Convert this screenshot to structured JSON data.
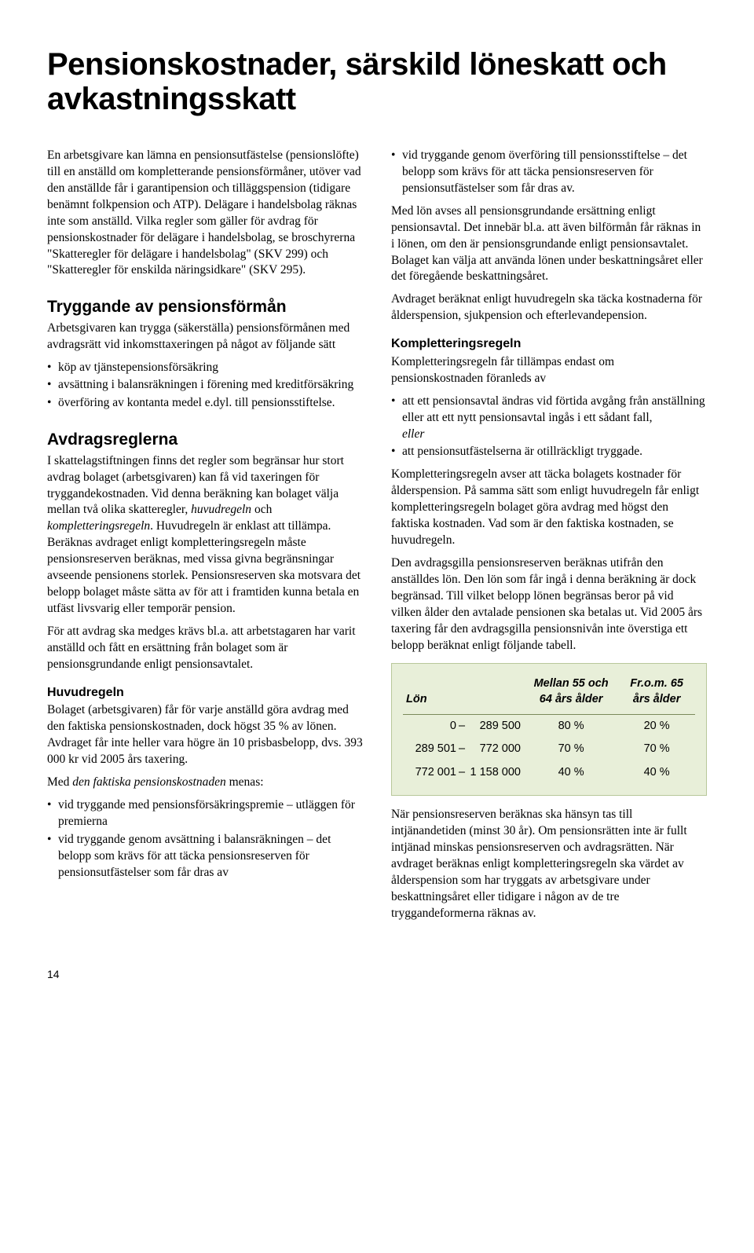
{
  "title": "Pensionskostnader, särskild löneskatt och avkastningsskatt",
  "left": {
    "intro": "En arbetsgivare kan lämna en pensionsutfästelse (pensionslöfte) till en anställd om kompletterande pensionsförmåner, utöver vad den anställde får i garantipension och tilläggspension (tidigare benämnt folkpension och ATP). Delägare i handelsbolag räknas inte som anställd. Vilka regler som gäller för avdrag för pensionskostnader för delägare i handelsbolag, se broschyrerna \"Skatteregler för delägare i handelsbolag\" (SKV 299) och \"Skatteregler för enskilda näringsidkare\" (SKV 295).",
    "h1": "Tryggande av pensionsförmån",
    "p1": "Arbetsgivaren kan trygga (säkerställa) pensionsförmånen med avdragsrätt vid inkomsttaxeringen på något av följande sätt",
    "b1": "köp av tjänstepensionsförsäkring",
    "b2": "avsättning i balansräkningen i förening med kreditförsäkring",
    "b3": "överföring av kontanta medel e.dyl. till pensionsstiftelse.",
    "h2": "Avdragsreglerna",
    "p2a": "I skattelagstiftningen finns det regler som begränsar hur stort avdrag bolaget (arbetsgivaren) kan få vid taxeringen för tryggandekostnaden. Vid denna beräkning kan bolaget välja mellan två olika skatteregler, ",
    "p2b": "huvudregeln",
    "p2c": " och ",
    "p2d": "kompletteringsregeln",
    "p2e": ". Huvudregeln är enklast att tillämpa. Beräknas avdraget enligt kompletteringsregeln måste pensionsreserven beräknas, med vissa givna begränsningar avseende pensionens storlek. Pensionsreserven ska motsvara det belopp bolaget måste sätta av för att i framtiden kunna betala en utfäst livsvarig eller temporär pension.",
    "p3": "För att avdrag ska medges krävs bl.a. att arbetstagaren har varit anställd och fått en ersättning från bolaget som är pensionsgrundande enligt pensionsavtalet.",
    "sh1": "Huvudregeln",
    "p4": "Bolaget (arbetsgivaren) får för varje anställd göra avdrag med den faktiska pensionskostnaden, dock högst 35 % av lönen. Avdraget får inte heller vara högre än 10 prisbasbelopp, dvs. 393 000 kr vid 2005 års taxering.",
    "p5a": "Med ",
    "p5b": "den faktiska pensionskostnaden",
    "p5c": " menas:",
    "b4": "vid tryggande med pensionsförsäkringspremie – utläggen för premierna",
    "b5": "vid tryggande genom avsättning i balansräkningen – det belopp som krävs för att täcka pensionsreserven för pensionsutfästelser som får dras av"
  },
  "right": {
    "b1": "vid tryggande genom överföring till pensionsstiftelse – det belopp som krävs för att täcka pensionsreserven för pensionsutfästelser som får dras av.",
    "p1": "Med lön avses all pensionsgrundande ersättning enligt pensionsavtal. Det innebär bl.a. att även bilförmån får räknas in i lönen, om den är pensionsgrundande enligt pensionsavtalet. Bolaget kan välja att använda lönen under beskattningsåret eller det föregående beskattningsåret.",
    "p2": "Avdraget beräknat enligt huvudregeln ska täcka kostnaderna för ålderspension, sjukpension och efterlevandepension.",
    "sh1": "Kompletteringsregeln",
    "p3": "Kompletteringsregeln får tillämpas endast om pensionskostnaden föranleds av",
    "b2a": "att ett pensionsavtal ändras vid förtida avgång från anställning eller att ett nytt pensionsavtal ingås i ett sådant fall,",
    "b2b": "eller",
    "b3": "att pensionsutfästelserna är otillräckligt tryggade.",
    "p4": "Kompletteringsregeln avser att täcka bolagets kostnader för ålderspension. På samma sätt som enligt huvudregeln får enligt kompletteringsregeln bolaget göra avdrag med högst den faktiska kostnaden. Vad som är den faktiska kostnaden, se huvudregeln.",
    "p5": "Den avdragsgilla pensionsreserven beräknas utifrån den anställdes lön. Den lön som får ingå i denna beräkning är dock begränsad. Till vilket belopp lönen begränsas beror på vid vilken ålder den avtalade pensionen ska betalas ut. Vid 2005 års taxering får den avdragsgilla pensionsnivån inte överstiga ett belopp beräknat enligt följande tabell.",
    "p6": "När pensionsreserven beräknas ska hänsyn tas till intjänandetiden (minst 30 år). Om pensionsrätten inte är fullt intjänad minskas pensionsreserven och avdragsrätten. När avdraget beräknas enligt kompletteringsregeln ska värdet av ålderspension som har tryggats av arbetsgivare under beskattningsåret eller tidigare i någon av de tre tryggandeformerna räknas av."
  },
  "table": {
    "h1": "Lön",
    "h2": "Mellan 55 och 64 års ålder",
    "h3": "Fr.o.m. 65 års ålder",
    "rows": [
      {
        "a": "0",
        "b": "289 500",
        "c": "80 %",
        "d": "20 %"
      },
      {
        "a": "289 501",
        "b": "772 000",
        "c": "70 %",
        "d": "70 %"
      },
      {
        "a": "772 001",
        "b": "1 158 000",
        "c": "40 %",
        "d": "40 %"
      }
    ]
  },
  "pageNumber": "14"
}
